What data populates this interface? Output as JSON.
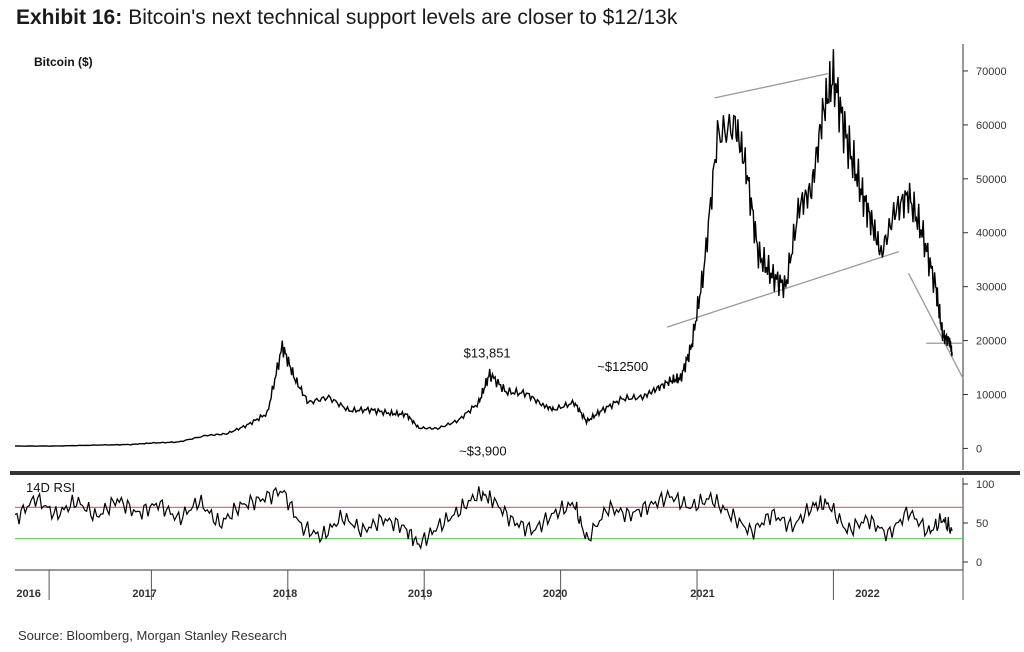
{
  "title": {
    "exhibit": "Exhibit 16:",
    "text": "Bitcoin's next technical support levels are closer to $12/13k"
  },
  "source": "Source: Bloomberg, Morgan Stanley Research",
  "colors": {
    "price_line": "#000000",
    "trend_line": "#9a9a9a",
    "rsi_overbought": "#e07070",
    "rsi_oversold": "#6fcf6f",
    "separator": "#333333"
  },
  "chart_data": [
    {
      "type": "line",
      "name": "price",
      "ylabel": "Bitcoin ($)",
      "ylim": [
        -4000,
        75000
      ],
      "yticks": [
        0,
        10000,
        20000,
        30000,
        40000,
        50000,
        60000,
        70000
      ],
      "ytick_labels": [
        "0",
        "10000",
        "20000",
        "30000",
        "40000",
        "50000",
        "60000",
        "70000"
      ],
      "xlim": [
        2016.0,
        2022.95
      ],
      "series": [
        {
          "name": "Bitcoin",
          "x": [
            2016.0,
            2016.3,
            2016.6,
            2016.85,
            2017.0,
            2017.2,
            2017.4,
            2017.55,
            2017.7,
            2017.85,
            2017.96,
            2018.05,
            2018.15,
            2018.3,
            2018.45,
            2018.6,
            2018.75,
            2018.87,
            2018.96,
            2019.1,
            2019.25,
            2019.4,
            2019.48,
            2019.6,
            2019.75,
            2019.87,
            2019.95,
            2020.1,
            2020.19,
            2020.3,
            2020.45,
            2020.6,
            2020.7,
            2020.8,
            2020.88,
            2020.96,
            2021.05,
            2021.15,
            2021.28,
            2021.36,
            2021.45,
            2021.55,
            2021.65,
            2021.75,
            2021.84,
            2021.92,
            2022.0,
            2022.1,
            2022.2,
            2022.28,
            2022.35,
            2022.45,
            2022.55,
            2022.65,
            2022.75,
            2022.8,
            2022.85,
            2022.87
          ],
          "values": [
            430,
            450,
            620,
            720,
            1000,
            1200,
            2400,
            2700,
            4300,
            6500,
            19000,
            13000,
            8500,
            9500,
            7000,
            7200,
            6500,
            6300,
            3800,
            3700,
            5200,
            8500,
            13851,
            10500,
            10200,
            8000,
            7200,
            8500,
            5000,
            7000,
            9200,
            9500,
            11000,
            12500,
            13000,
            19000,
            33000,
            58000,
            60000,
            52000,
            36000,
            32000,
            30000,
            45000,
            48000,
            62000,
            69000,
            57000,
            48000,
            42000,
            36000,
            44000,
            47000,
            40000,
            30000,
            21000,
            20000,
            17800
          ]
        }
      ],
      "annotations": [
        {
          "text": "$13,851",
          "x": 2019.48,
          "y": 13851
        },
        {
          "text": "~$12500",
          "x": 2020.65,
          "y": 12500
        },
        {
          "text": "~$3,900",
          "x": 2019.33,
          "y": 3900
        }
      ],
      "trend_lines": [
        {
          "from": [
            2020.78,
            22500
          ],
          "to": [
            2022.48,
            36500
          ]
        },
        {
          "from": [
            2021.13,
            65000
          ],
          "to": [
            2021.96,
            69500
          ]
        },
        {
          "from": [
            2022.55,
            32500
          ],
          "to": [
            2022.95,
            13000
          ]
        },
        {
          "from": [
            2022.68,
            19500
          ],
          "to": [
            2022.95,
            19500
          ]
        }
      ]
    },
    {
      "type": "line",
      "name": "rsi",
      "ylabel": "14D RSI",
      "ylim": [
        0,
        100
      ],
      "yticks": [
        0,
        50,
        100
      ],
      "ytick_labels": [
        "0",
        "50",
        "100"
      ],
      "reference_lines": [
        70,
        30
      ],
      "xlim": [
        2016.0,
        2022.95
      ],
      "series": [
        {
          "name": "RSI",
          "x": [
            2016.0,
            2016.15,
            2016.3,
            2016.45,
            2016.6,
            2016.75,
            2016.9,
            2017.05,
            2017.2,
            2017.35,
            2017.5,
            2017.65,
            2017.8,
            2017.96,
            2018.1,
            2018.25,
            2018.4,
            2018.55,
            2018.7,
            2018.85,
            2018.96,
            2019.1,
            2019.25,
            2019.4,
            2019.5,
            2019.65,
            2019.8,
            2019.95,
            2020.1,
            2020.19,
            2020.35,
            2020.5,
            2020.65,
            2020.8,
            2020.95,
            2021.1,
            2021.25,
            2021.4,
            2021.55,
            2021.7,
            2021.85,
            2021.96,
            2022.1,
            2022.25,
            2022.4,
            2022.55,
            2022.7,
            2022.8,
            2022.87
          ],
          "values": [
            55,
            82,
            60,
            78,
            58,
            80,
            62,
            75,
            55,
            78,
            48,
            72,
            80,
            92,
            45,
            32,
            58,
            40,
            55,
            45,
            22,
            45,
            65,
            88,
            80,
            52,
            40,
            62,
            75,
            28,
            70,
            60,
            72,
            85,
            70,
            82,
            60,
            38,
            62,
            45,
            72,
            75,
            40,
            55,
            35,
            65,
            38,
            55,
            40
          ]
        }
      ]
    },
    {
      "type": "axis",
      "name": "years",
      "year_labels": [
        "2016",
        "2017",
        "2018",
        "2019",
        "2020",
        "2021",
        "2022"
      ],
      "year_centers": [
        2016.1,
        2016.95,
        2017.98,
        2018.97,
        2019.96,
        2021.04,
        2022.25
      ]
    }
  ]
}
